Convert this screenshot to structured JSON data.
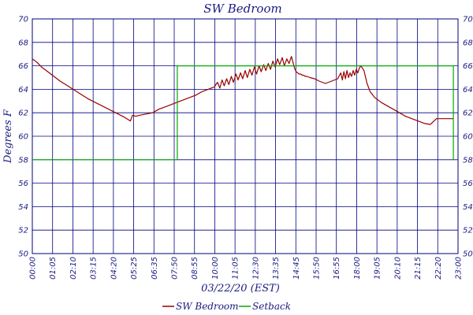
{
  "chart_data": {
    "type": "line",
    "title": "SW Bedroom",
    "xlabel": "03/22/20 (EST)",
    "ylabel": "Degrees F",
    "xlim_minutes": [
      0,
      1380
    ],
    "ylim": [
      50,
      70
    ],
    "yticks": [
      50,
      52,
      54,
      56,
      58,
      60,
      62,
      64,
      66,
      68,
      70
    ],
    "xticks": [
      "00:00",
      "01:05",
      "02:10",
      "03:15",
      "04:20",
      "05:25",
      "06:35",
      "07:50",
      "08:55",
      "10:00",
      "11:05",
      "12:30",
      "13:35",
      "14:45",
      "15:50",
      "16:55",
      "18:00",
      "19:05",
      "20:10",
      "21:15",
      "22:20",
      "23:00"
    ],
    "grid": true,
    "legend_position": "bottom",
    "series": [
      {
        "name": "SW Bedroom",
        "color": "#990000",
        "x_minutes": [
          0,
          15,
          30,
          60,
          90,
          120,
          150,
          180,
          210,
          240,
          270,
          300,
          318,
          325,
          335,
          350,
          370,
          390,
          410,
          430,
          450,
          470,
          490,
          510,
          530,
          550,
          570,
          590,
          600,
          608,
          615,
          622,
          630,
          637,
          645,
          652,
          660,
          667,
          675,
          682,
          690,
          697,
          705,
          712,
          720,
          727,
          735,
          742,
          750,
          757,
          765,
          772,
          780,
          787,
          795,
          802,
          810,
          817,
          825,
          832,
          840,
          850,
          855,
          860,
          865,
          870,
          875,
          880,
          885,
          890,
          900,
          915,
          930,
          950,
          970,
          990,
          1000,
          1005,
          1010,
          1015,
          1020,
          1025,
          1030,
          1035,
          1040,
          1045,
          1050,
          1055,
          1060,
          1065,
          1075,
          1085,
          1095,
          1110,
          1130,
          1150,
          1170,
          1190,
          1210,
          1230,
          1250,
          1270,
          1290,
          1310,
          1330,
          1350,
          1365
        ],
        "values": [
          66.6,
          66.3,
          65.9,
          65.3,
          64.7,
          64.2,
          63.7,
          63.2,
          62.8,
          62.4,
          62.0,
          61.6,
          61.3,
          61.8,
          61.7,
          61.8,
          61.9,
          62.0,
          62.3,
          62.5,
          62.7,
          62.9,
          63.1,
          63.3,
          63.5,
          63.8,
          64.0,
          64.2,
          64.6,
          64.1,
          64.8,
          64.3,
          64.9,
          64.4,
          65.1,
          64.6,
          65.3,
          64.8,
          65.4,
          64.9,
          65.6,
          65.0,
          65.7,
          65.2,
          65.9,
          65.3,
          66.0,
          65.5,
          66.1,
          65.6,
          66.2,
          65.7,
          66.4,
          65.9,
          66.6,
          66.1,
          66.7,
          66.0,
          66.6,
          66.2,
          66.8,
          65.8,
          65.5,
          65.4,
          65.3,
          65.3,
          65.2,
          65.2,
          65.1,
          65.1,
          65.0,
          64.9,
          64.7,
          64.5,
          64.7,
          64.9,
          65.4,
          64.8,
          65.5,
          64.9,
          65.6,
          65.0,
          65.4,
          65.1,
          65.6,
          65.2,
          65.7,
          65.4,
          65.8,
          66.0,
          65.6,
          64.5,
          63.8,
          63.3,
          62.9,
          62.6,
          62.3,
          62.0,
          61.7,
          61.5,
          61.3,
          61.1,
          61.0,
          61.5,
          61.5,
          61.5,
          61.5
        ]
      },
      {
        "name": "Setback",
        "color": "#00aa00",
        "x_minutes": [
          0,
          470,
          470,
          1365,
          1365
        ],
        "values": [
          58,
          58,
          66,
          66,
          58
        ]
      }
    ]
  }
}
